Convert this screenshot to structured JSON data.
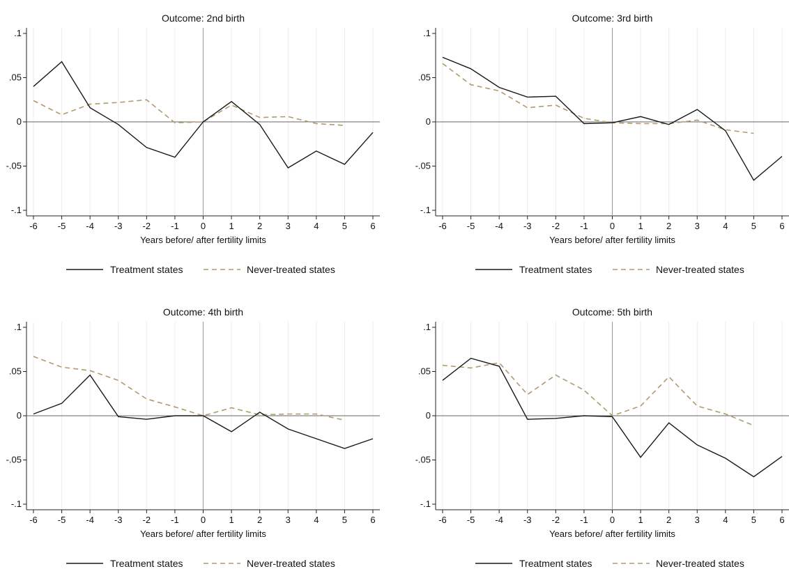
{
  "figure": {
    "series_styles": {
      "treatment": {
        "color": "#1a1a1a",
        "dash": "solid"
      },
      "never": {
        "color": "#b09a6e",
        "dash": "dashed"
      }
    }
  },
  "chart_data": [
    {
      "type": "line",
      "title": "Outcome: 2nd birth",
      "xlabel": "Years before/ after fertility limits",
      "ylabel": "",
      "x": [
        -6,
        -5,
        -4,
        -3,
        -2,
        -1,
        0,
        1,
        2,
        3,
        4,
        5,
        6
      ],
      "x_ticks": [
        "-6",
        "-5",
        "-4",
        "-3",
        "-2",
        "-1",
        "0",
        "1",
        "2",
        "3",
        "4",
        "5",
        "6"
      ],
      "y_ticks": [
        0.1,
        0.05,
        0,
        -0.05,
        -0.1
      ],
      "y_tick_labels": [
        ".1",
        ".05",
        "0",
        "-.05",
        "-.1"
      ],
      "xlim": [
        -6,
        6
      ],
      "ylim": [
        -0.1,
        0.1
      ],
      "grid": true,
      "legend": "bottom",
      "series": [
        {
          "key": "treatment",
          "name": "Treatment states",
          "values": [
            0.04,
            0.068,
            0.016,
            -0.003,
            -0.029,
            -0.04,
            0.0,
            0.023,
            -0.003,
            -0.052,
            -0.033,
            -0.048,
            -0.012
          ]
        },
        {
          "key": "never",
          "name": "Never-treated states",
          "values": [
            0.024,
            0.008,
            0.02,
            0.022,
            0.025,
            -0.001,
            0.0,
            0.019,
            0.005,
            0.006,
            -0.002,
            -0.004,
            null
          ]
        }
      ]
    },
    {
      "type": "line",
      "title": "Outcome: 3rd birth",
      "xlabel": "Years before/ after fertility limits",
      "ylabel": "",
      "x": [
        -6,
        -5,
        -4,
        -3,
        -2,
        -1,
        0,
        1,
        2,
        3,
        4,
        5,
        6
      ],
      "x_ticks": [
        "-6",
        "-5",
        "-4",
        "-3",
        "-2",
        "-1",
        "0",
        "1",
        "2",
        "3",
        "4",
        "5",
        "6"
      ],
      "y_ticks": [
        0.1,
        0.05,
        0,
        -0.05,
        -0.1
      ],
      "y_tick_labels": [
        ".1",
        ".05",
        "0",
        "-.05",
        "-.1"
      ],
      "xlim": [
        -6,
        6
      ],
      "ylim": [
        -0.1,
        0.1
      ],
      "grid": true,
      "legend": "bottom",
      "series": [
        {
          "key": "treatment",
          "name": "Treatment states",
          "values": [
            0.073,
            0.06,
            0.039,
            0.028,
            0.029,
            -0.002,
            -0.001,
            0.006,
            -0.003,
            0.014,
            -0.01,
            -0.066,
            -0.039
          ]
        },
        {
          "key": "never",
          "name": "Never-treated states",
          "values": [
            0.066,
            0.042,
            0.035,
            0.016,
            0.019,
            0.004,
            -0.001,
            -0.002,
            -0.002,
            0.002,
            -0.009,
            -0.013,
            null
          ]
        }
      ]
    },
    {
      "type": "line",
      "title": "Outcome: 4th birth",
      "xlabel": "Years before/ after fertility limits",
      "ylabel": "",
      "x": [
        -6,
        -5,
        -4,
        -3,
        -2,
        -1,
        0,
        1,
        2,
        3,
        4,
        5,
        6
      ],
      "x_ticks": [
        "-6",
        "-5",
        "-4",
        "-3",
        "-2",
        "-1",
        "0",
        "1",
        "2",
        "3",
        "4",
        "5",
        "6"
      ],
      "y_ticks": [
        0.1,
        0.05,
        0,
        -0.05,
        -0.1
      ],
      "y_tick_labels": [
        ".1",
        ".05",
        "0",
        "-.05",
        "-.1"
      ],
      "xlim": [
        -6,
        6
      ],
      "ylim": [
        -0.1,
        0.1
      ],
      "grid": true,
      "legend": "bottom",
      "series": [
        {
          "key": "treatment",
          "name": "Treatment states",
          "values": [
            0.002,
            0.014,
            0.046,
            -0.001,
            -0.004,
            0.0,
            0.0,
            -0.018,
            0.004,
            -0.015,
            -0.026,
            -0.037,
            -0.026
          ]
        },
        {
          "key": "never",
          "name": "Never-treated states",
          "values": [
            0.067,
            0.055,
            0.051,
            0.04,
            0.019,
            0.01,
            0.0,
            0.009,
            0.001,
            0.002,
            0.002,
            -0.005,
            null
          ]
        }
      ]
    },
    {
      "type": "line",
      "title": "Outcome: 5th birth",
      "xlabel": "Years before/ after fertility limits",
      "ylabel": "",
      "x": [
        -6,
        -5,
        -4,
        -3,
        -2,
        -1,
        0,
        1,
        2,
        3,
        4,
        5,
        6
      ],
      "x_ticks": [
        "-6",
        "-5",
        "-4",
        "-3",
        "-2",
        "-1",
        "0",
        "1",
        "2",
        "3",
        "4",
        "5",
        "6"
      ],
      "y_ticks": [
        0.1,
        0.05,
        0,
        -0.05,
        -0.1
      ],
      "y_tick_labels": [
        ".1",
        ".05",
        "0",
        "-.05",
        "-.1"
      ],
      "xlim": [
        -6,
        6
      ],
      "ylim": [
        -0.1,
        0.1
      ],
      "grid": true,
      "legend": "bottom",
      "series": [
        {
          "key": "treatment",
          "name": "Treatment states",
          "values": [
            0.04,
            0.065,
            0.056,
            -0.004,
            -0.003,
            0.0,
            -0.001,
            -0.047,
            -0.008,
            -0.033,
            -0.048,
            -0.069,
            -0.046
          ]
        },
        {
          "key": "never",
          "name": "Never-treated states",
          "values": [
            0.057,
            0.054,
            0.06,
            0.024,
            0.046,
            0.029,
            0.0,
            0.011,
            0.044,
            0.011,
            0.002,
            -0.011,
            null
          ]
        }
      ]
    }
  ]
}
